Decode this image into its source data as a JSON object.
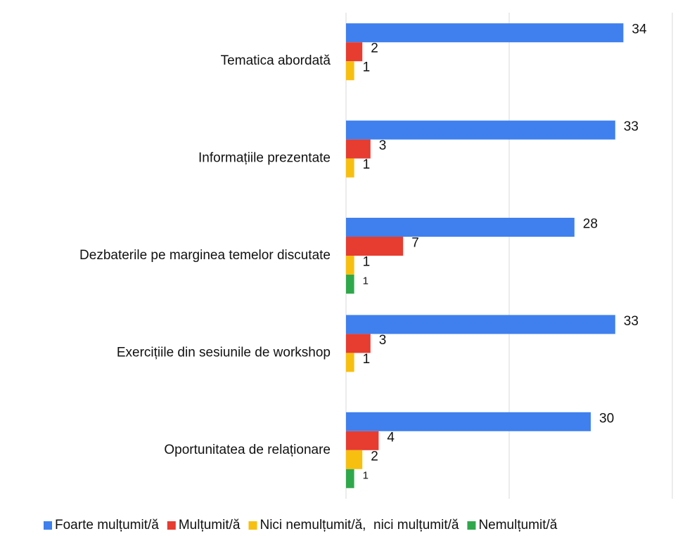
{
  "chart_data": {
    "type": "hbar",
    "categories": [
      "Tematica abordată",
      "Informațiile prezentate",
      "Dezbaterile pe marginea temelor discutate",
      "Exercițiile din sesiunile de workshop",
      "Oportunitatea de relaționare"
    ],
    "series": [
      {
        "name": "Foarte mulțumit/ă",
        "color": "#3f80ee",
        "values": [
          34,
          33,
          28,
          33,
          30
        ]
      },
      {
        "name": "Mulțumit/ă",
        "color": "#e73c30",
        "values": [
          2,
          3,
          7,
          3,
          4
        ]
      },
      {
        "name": "Nici nemulțumit/ă,  nici mulțumit/ă",
        "color": "#f7bf10",
        "values": [
          1,
          1,
          1,
          1,
          2
        ]
      },
      {
        "name": "Nemulțumit/ă",
        "color": "#2fa84c",
        "values": [
          null,
          null,
          1,
          null,
          1
        ]
      }
    ],
    "xlim": [
      0,
      40
    ],
    "xticks": [
      0,
      20,
      40
    ],
    "tick_labels": false,
    "grid": true,
    "legend": "bottom"
  }
}
